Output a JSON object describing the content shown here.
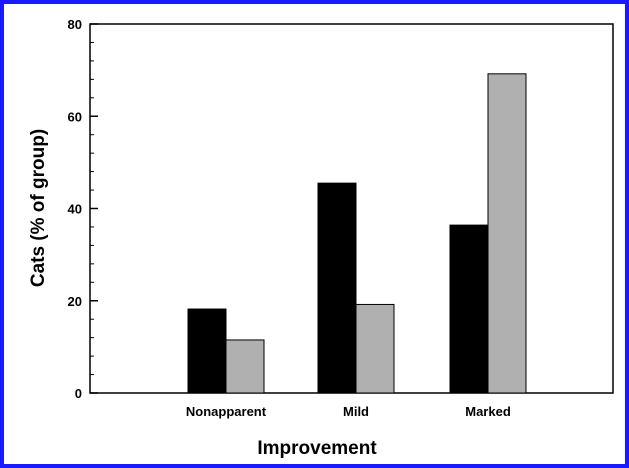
{
  "chart_data": {
    "type": "bar",
    "title": "",
    "xlabel": "Improvement",
    "ylabel": "Cats (% of group)",
    "categories": [
      "Nonapparent",
      "Mild",
      "Marked"
    ],
    "series": [
      {
        "values": [
          18.2,
          45.5,
          36.4
        ],
        "color": "#000000"
      },
      {
        "values": [
          11.5,
          19.2,
          69.2
        ],
        "color": "#b0b0b0"
      }
    ],
    "ylim": [
      0,
      80
    ],
    "yticks": [
      0,
      20,
      40,
      60,
      80
    ],
    "grid": false,
    "legend": "none"
  }
}
